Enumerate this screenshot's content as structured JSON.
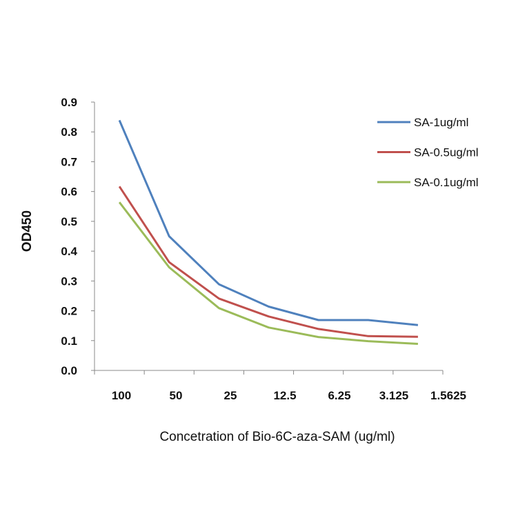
{
  "chart_data": {
    "type": "line",
    "title": "",
    "xlabel": "Concetration of Bio-6C-aza-SAM (ug/ml)",
    "ylabel": "OD450",
    "categories": [
      "100",
      "50",
      "25",
      "12.5",
      "6.25",
      "3.125",
      "1.5625"
    ],
    "ylim": [
      0,
      0.9
    ],
    "yticks": [
      "0.0",
      "0.1",
      "0.2",
      "0.3",
      "0.4",
      "0.5",
      "0.6",
      "0.7",
      "0.8",
      "0.9"
    ],
    "grid": false,
    "legend_position": "top-right",
    "series": [
      {
        "name": "SA-1ug/ml",
        "color": "#4f81bd",
        "values": [
          0.839,
          0.45,
          0.289,
          0.214,
          0.169,
          0.169,
          0.152
        ]
      },
      {
        "name": "SA-0.5ug/ml",
        "color": "#c0504d",
        "values": [
          0.617,
          0.363,
          0.241,
          0.181,
          0.139,
          0.115,
          0.113
        ]
      },
      {
        "name": "SA-0.1ug/ml",
        "color": "#9bbb59",
        "values": [
          0.564,
          0.346,
          0.209,
          0.144,
          0.112,
          0.098,
          0.089
        ]
      }
    ]
  }
}
